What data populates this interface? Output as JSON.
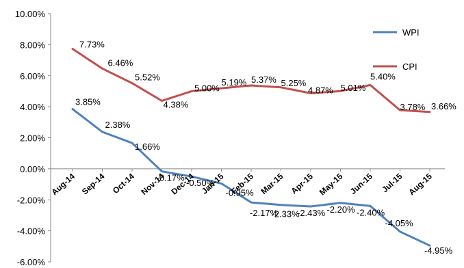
{
  "chart_data": {
    "type": "line",
    "title": "",
    "xlabel": "",
    "ylabel": "",
    "categories": [
      "Aug-14",
      "Sep-14",
      "Oct-14",
      "Nov-14",
      "Dec-14",
      "Jan-15",
      "Feb-15",
      "Mar-15",
      "Apr-15",
      "May-15",
      "Jun-15",
      "Jul-15",
      "Aug-15"
    ],
    "ylim": [
      -6,
      10
    ],
    "ytick_step": 2,
    "ytick_labels": [
      "10.00%",
      "8.00%",
      "6.00%",
      "4.00%",
      "2.00%",
      "0.00%",
      "-2.00%",
      "-4.00%",
      "-6.00%"
    ],
    "grid": false,
    "legend_position": "top-right",
    "series": [
      {
        "name": "WPI",
        "color": "#4f81bd",
        "values": [
          3.85,
          2.38,
          1.66,
          -0.17,
          -0.5,
          -0.95,
          -2.17,
          -2.33,
          -2.43,
          -2.2,
          -2.4,
          -4.05,
          -4.95
        ],
        "labels": [
          "3.85%",
          "2.38%",
          "1.66%",
          "-0.17%",
          "-0.50%",
          "-0.95%",
          "-2.17%",
          "-2.33%",
          "-2.43%",
          "-2.20%",
          "-2.40%",
          "-4.05%",
          "-4.95%"
        ]
      },
      {
        "name": "CPI",
        "color": "#c0504d",
        "values": [
          7.73,
          6.46,
          5.52,
          4.38,
          5.0,
          5.19,
          5.37,
          5.25,
          4.87,
          5.01,
          5.4,
          3.78,
          3.66
        ],
        "labels": [
          "7.73%",
          "6.46%",
          "5.52%",
          "4.38%",
          "5.00%",
          "5.19%",
          "5.37%",
          "5.25%",
          "4.87%",
          "5.01%",
          "5.40%",
          "3.78%",
          "3.66%"
        ]
      }
    ]
  }
}
